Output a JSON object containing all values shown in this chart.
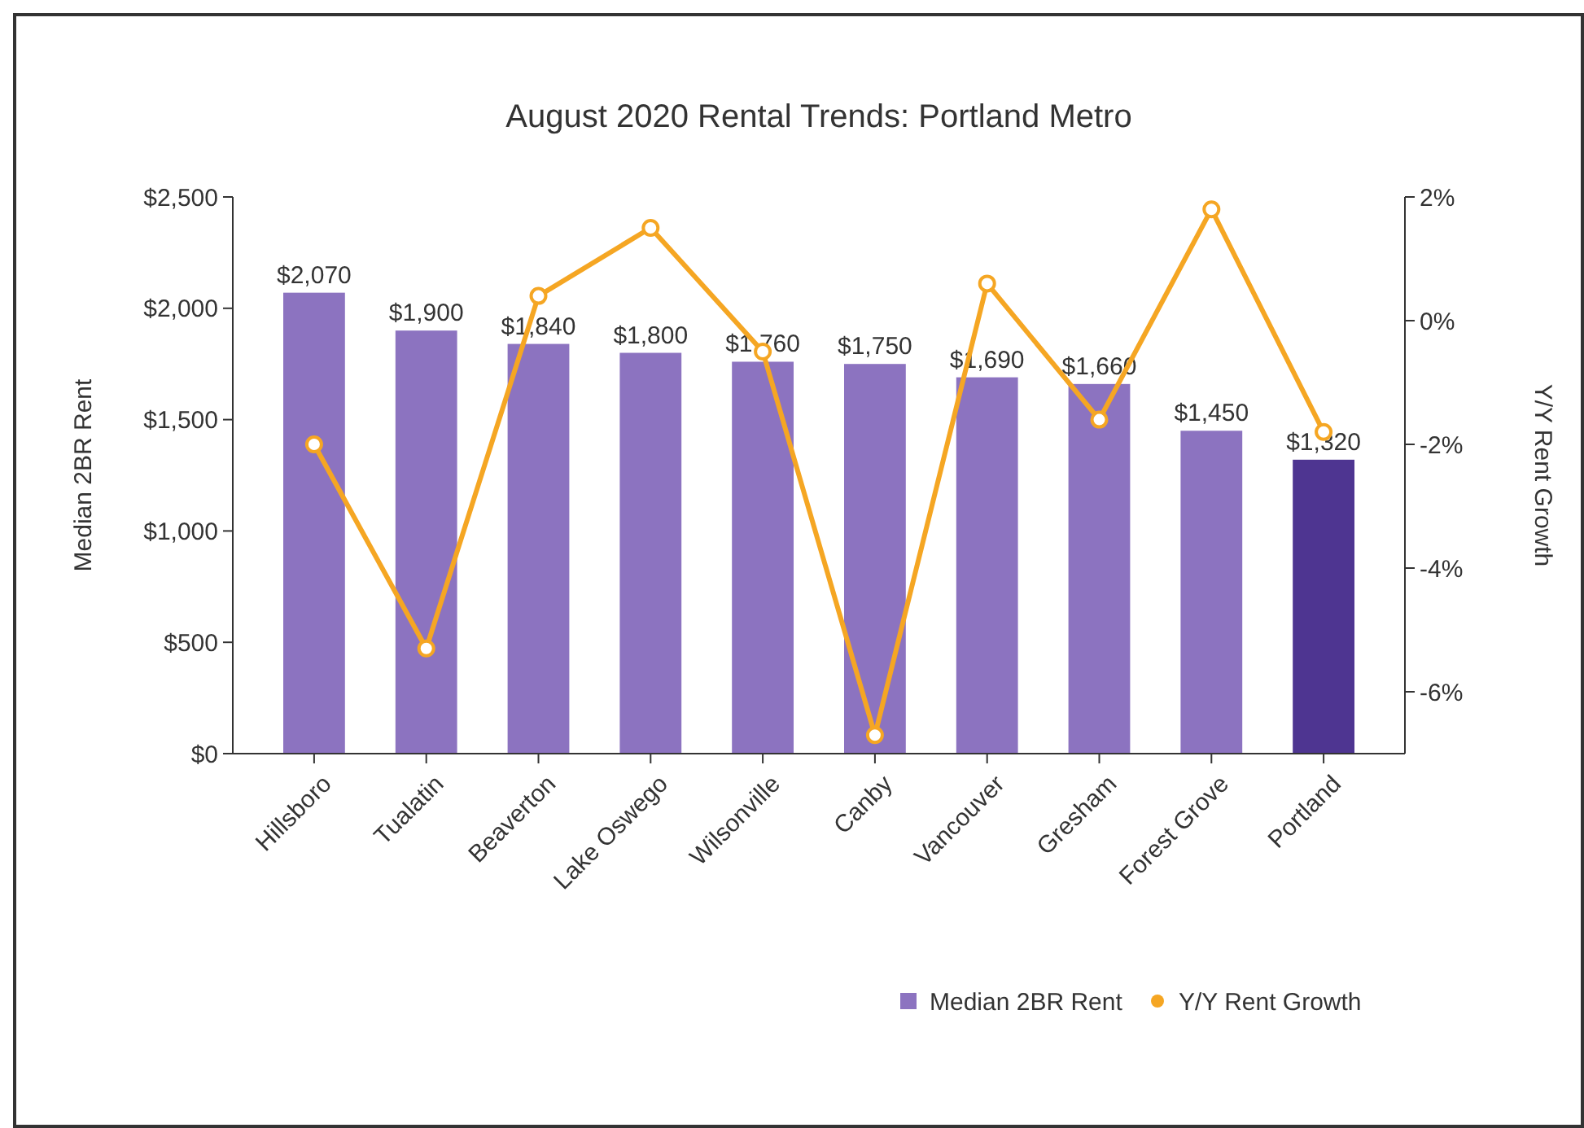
{
  "chart_data": {
    "type": "bar",
    "title": "August 2020 Rental Trends: Portland Metro",
    "ylabel": "Median 2BR Rent",
    "y2label": "Y/Y Rent Growth",
    "categories": [
      "Hillsboro",
      "Tualatin",
      "Beaverton",
      "Lake Oswego",
      "Wilsonville",
      "Canby",
      "Vancouver",
      "Gresham",
      "Forest Grove",
      "Portland"
    ],
    "series": [
      {
        "name": "Median 2BR Rent",
        "color": "#8c73c0",
        "colors": [
          "#8c73c0",
          "#8c73c0",
          "#8c73c0",
          "#8c73c0",
          "#8c73c0",
          "#8c73c0",
          "#8c73c0",
          "#8c73c0",
          "#8c73c0",
          "#4e3591"
        ],
        "values": [
          2070,
          1900,
          1840,
          1800,
          1760,
          1750,
          1690,
          1660,
          1450,
          1320
        ],
        "value_labels": [
          "$2,070",
          "$1,900",
          "$1,840",
          "$1,800",
          "$1,760",
          "$1,750",
          "$1,690",
          "$1,660",
          "$1,450",
          "$1,320"
        ]
      },
      {
        "name": "Y/Y Rent Growth",
        "type": "line",
        "axis": "y2",
        "color": "#f5a623",
        "marker": "circle",
        "values": [
          -2.0,
          -5.3,
          0.4,
          1.5,
          -0.5,
          -6.7,
          0.6,
          -1.6,
          1.8,
          -1.8
        ]
      }
    ],
    "ylim": [
      0,
      2500
    ],
    "yticks": [
      {
        "value": 0,
        "label": "$0"
      },
      {
        "value": 500,
        "label": "$500"
      },
      {
        "value": 1000,
        "label": "$1,000"
      },
      {
        "value": 1500,
        "label": "$1,500"
      },
      {
        "value": 2000,
        "label": "$2,000"
      },
      {
        "value": 2500,
        "label": "$2,500"
      }
    ],
    "y2lim": [
      -7,
      2
    ],
    "y2ticks": [
      {
        "value": -6,
        "label": "-6%"
      },
      {
        "value": -4,
        "label": "-4%"
      },
      {
        "value": -2,
        "label": "-2%"
      },
      {
        "value": 0,
        "label": "0%"
      },
      {
        "value": 2,
        "label": "2%"
      }
    ],
    "grid": false,
    "legend": "bottom right"
  }
}
